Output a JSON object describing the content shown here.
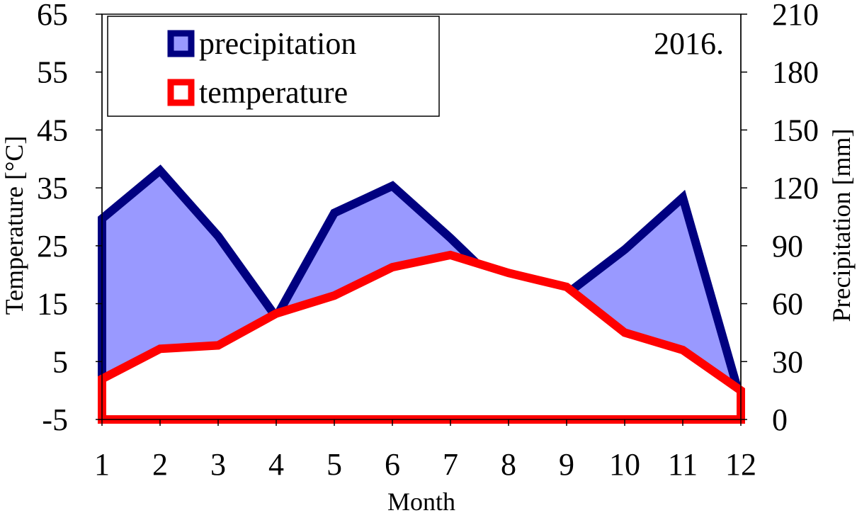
{
  "chart_data": {
    "type": "area",
    "annotation": "2016.",
    "xlabel": "Month",
    "ylabel_left": "Temperature [°C]",
    "ylabel_right": "Precipitation [mm]",
    "x": [
      1,
      2,
      3,
      4,
      5,
      6,
      7,
      8,
      9,
      10,
      11,
      12
    ],
    "x_ticks": [
      "1",
      "2",
      "3",
      "4",
      "5",
      "6",
      "7",
      "8",
      "9",
      "10",
      "11",
      "12"
    ],
    "ylim_left": [
      -5,
      65
    ],
    "ylim_right": [
      0,
      210
    ],
    "yticks_left": [
      "-5",
      "5",
      "15",
      "25",
      "35",
      "45",
      "55",
      "65"
    ],
    "yticks_right": [
      "0",
      "30",
      "60",
      "90",
      "120",
      "150",
      "180",
      "210"
    ],
    "legend_position": "top-left",
    "series": [
      {
        "name": "precipitation",
        "axis": "right",
        "kind": "area",
        "color": "#000080",
        "fill": "#9999ff",
        "values": [
          104,
          129,
          95,
          53,
          107,
          121,
          94,
          65,
          65,
          88,
          115,
          10
        ]
      },
      {
        "name": "temperature",
        "axis": "left",
        "kind": "area",
        "color": "#ff0000",
        "fill": "#ffffff",
        "values": [
          2.0,
          7.2,
          7.8,
          13.3,
          16.4,
          21.3,
          23.4,
          20.3,
          17.9,
          10.0,
          7.0,
          0.0
        ]
      }
    ]
  }
}
